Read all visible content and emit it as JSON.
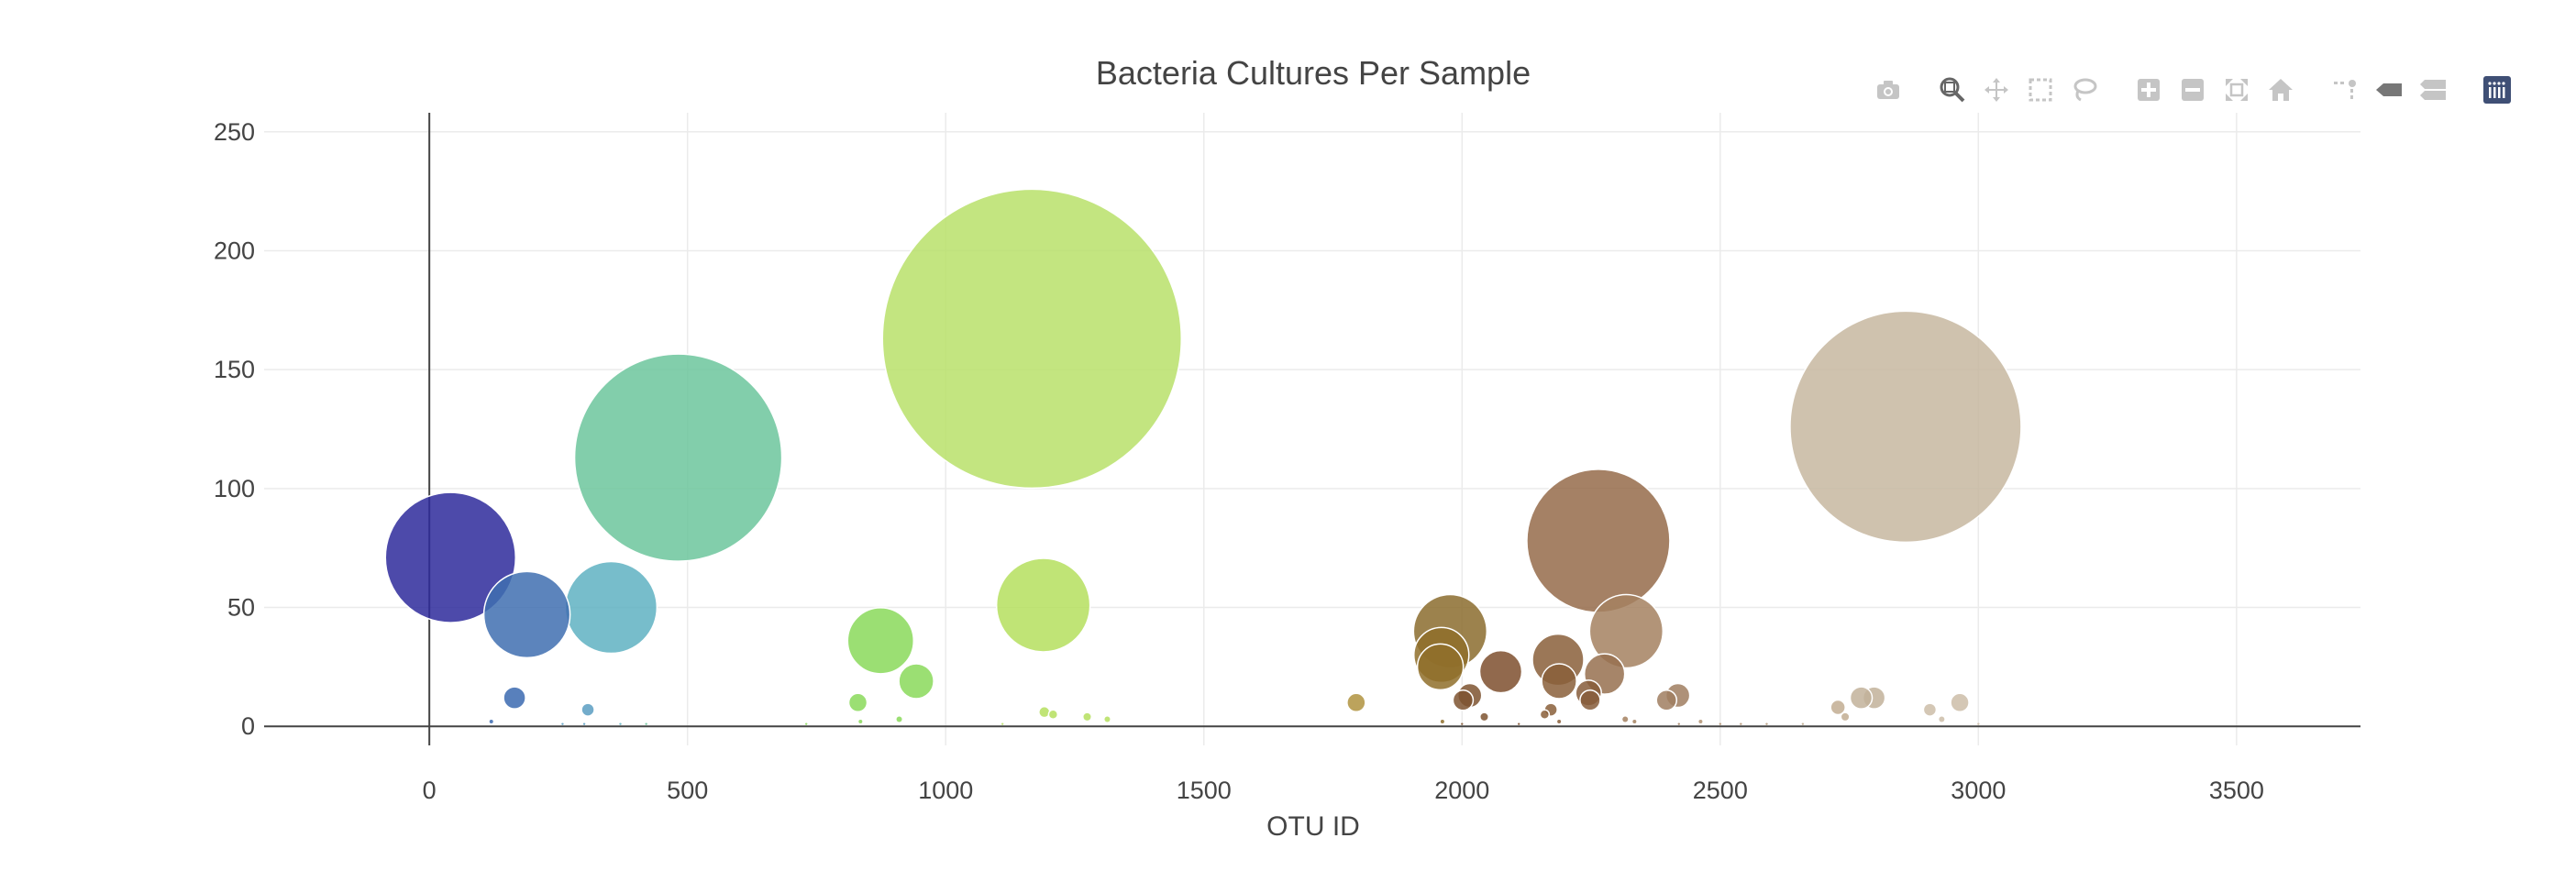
{
  "chart_data": {
    "type": "scatter",
    "mode": "bubble",
    "title": "Bacteria Cultures Per Sample",
    "xlabel": "OTU ID",
    "ylabel": "",
    "xlim": [
      -320,
      3740
    ],
    "ylim": [
      -8,
      258
    ],
    "x_ticks": [
      0,
      500,
      1000,
      1500,
      2000,
      2500,
      3000,
      3500
    ],
    "y_ticks": [
      0,
      50,
      100,
      150,
      200,
      250
    ],
    "grid": true,
    "colorscale": "Earth",
    "points": [
      {
        "x": 41,
        "y": 71,
        "color": "#2e2a9b"
      },
      {
        "x": 189,
        "y": 47,
        "color": "#3f6eb0"
      },
      {
        "x": 352,
        "y": 50,
        "color": "#5fb2c2"
      },
      {
        "x": 482,
        "y": 113,
        "color": "#6cc59c"
      },
      {
        "x": 1167,
        "y": 163,
        "color": "#b9e06a"
      },
      {
        "x": 2859,
        "y": 126,
        "color": "#c7b7a0"
      },
      {
        "x": 2264,
        "y": 78,
        "color": "#956b4a"
      },
      {
        "x": 1189,
        "y": 51,
        "color": "#b5df5e"
      },
      {
        "x": 1977,
        "y": 40,
        "color": "#8b6c2e"
      },
      {
        "x": 2318,
        "y": 40,
        "color": "#a58160"
      },
      {
        "x": 874,
        "y": 36,
        "color": "#8ad95a"
      },
      {
        "x": 1960,
        "y": 30,
        "color": "#8f6e2a"
      },
      {
        "x": 1958,
        "y": 25,
        "color": "#8f6e2a"
      },
      {
        "x": 2186,
        "y": 28,
        "color": "#8a5f3a"
      },
      {
        "x": 2075,
        "y": 23,
        "color": "#7e4f2e"
      },
      {
        "x": 2188,
        "y": 19,
        "color": "#8a5f3a"
      },
      {
        "x": 2276,
        "y": 22,
        "color": "#96704f"
      },
      {
        "x": 943,
        "y": 19,
        "color": "#8ad95a"
      },
      {
        "x": 2245,
        "y": 14,
        "color": "#865c3a"
      },
      {
        "x": 2248,
        "y": 11,
        "color": "#865c3a"
      },
      {
        "x": 2418,
        "y": 13,
        "color": "#a07e60"
      },
      {
        "x": 2798,
        "y": 12,
        "color": "#c2b29a"
      },
      {
        "x": 2773,
        "y": 12,
        "color": "#c2b29a"
      },
      {
        "x": 2396,
        "y": 11,
        "color": "#a07e60"
      },
      {
        "x": 2015,
        "y": 13,
        "color": "#7e5430"
      },
      {
        "x": 165,
        "y": 12,
        "color": "#3b6ab0"
      },
      {
        "x": 2002,
        "y": 11,
        "color": "#7e5430"
      },
      {
        "x": 1795,
        "y": 10,
        "color": "#b0933f"
      },
      {
        "x": 2964,
        "y": 10,
        "color": "#ccbda8"
      },
      {
        "x": 830,
        "y": 10,
        "color": "#8ad95a"
      },
      {
        "x": 2728,
        "y": 8,
        "color": "#c2ad92"
      },
      {
        "x": 2172,
        "y": 7,
        "color": "#8a5f3a"
      },
      {
        "x": 2906,
        "y": 7,
        "color": "#ccbda8"
      },
      {
        "x": 307,
        "y": 7,
        "color": "#5a9ec2"
      },
      {
        "x": 1191,
        "y": 6,
        "color": "#b5df5e"
      },
      {
        "x": 1208,
        "y": 5,
        "color": "#b5df5e"
      },
      {
        "x": 2160,
        "y": 5,
        "color": "#8a5f3a"
      },
      {
        "x": 2043,
        "y": 4,
        "color": "#7e5430"
      },
      {
        "x": 2742,
        "y": 4,
        "color": "#c2ad92"
      },
      {
        "x": 1274,
        "y": 4,
        "color": "#b5df5e"
      },
      {
        "x": 1313,
        "y": 3,
        "color": "#b5df5e"
      },
      {
        "x": 910,
        "y": 3,
        "color": "#8ad95a"
      },
      {
        "x": 2929,
        "y": 3,
        "color": "#ccbda8"
      },
      {
        "x": 2316,
        "y": 3,
        "color": "#a58160"
      },
      {
        "x": 2334,
        "y": 2,
        "color": "#a58160"
      },
      {
        "x": 120,
        "y": 2,
        "color": "#3b6ab0"
      },
      {
        "x": 835,
        "y": 2,
        "color": "#8ad95a"
      },
      {
        "x": 1962,
        "y": 2,
        "color": "#8f6e2a"
      },
      {
        "x": 2188,
        "y": 2,
        "color": "#8a5f3a"
      },
      {
        "x": 2462,
        "y": 2,
        "color": "#b09070"
      },
      {
        "x": 2000,
        "y": 1,
        "color": "#7e5430"
      },
      {
        "x": 2500,
        "y": 1,
        "color": "#b09070"
      },
      {
        "x": 2540,
        "y": 1,
        "color": "#b09070"
      },
      {
        "x": 2590,
        "y": 1,
        "color": "#b49878"
      },
      {
        "x": 258,
        "y": 1,
        "color": "#5a9ec2"
      },
      {
        "x": 300,
        "y": 1,
        "color": "#5a9ec2"
      },
      {
        "x": 370,
        "y": 1,
        "color": "#5fb2c2"
      },
      {
        "x": 420,
        "y": 1,
        "color": "#6cc59c"
      },
      {
        "x": 730,
        "y": 1,
        "color": "#8ad95a"
      },
      {
        "x": 1110,
        "y": 1,
        "color": "#b9e06a"
      },
      {
        "x": 2110,
        "y": 1,
        "color": "#7e4f2e"
      },
      {
        "x": 2660,
        "y": 1,
        "color": "#bca88c"
      },
      {
        "x": 3000,
        "y": 1,
        "color": "#ccbda8"
      },
      {
        "x": 2420,
        "y": 1,
        "color": "#a07e60"
      }
    ]
  },
  "modebar": {
    "buttons": [
      {
        "icon": "camera-icon",
        "group": 0
      },
      {
        "icon": "zoom-icon",
        "group": 1,
        "active": true
      },
      {
        "icon": "pan-icon",
        "group": 1
      },
      {
        "icon": "box-select-icon",
        "group": 1
      },
      {
        "icon": "lasso-icon",
        "group": 1
      },
      {
        "icon": "zoom-in-icon",
        "group": 2
      },
      {
        "icon": "zoom-out-icon",
        "group": 2
      },
      {
        "icon": "autoscale-icon",
        "group": 2
      },
      {
        "icon": "reset-axes-icon",
        "group": 2
      },
      {
        "icon": "spike-lines-icon",
        "group": 3
      },
      {
        "icon": "hover-closest-icon",
        "group": 3
      },
      {
        "icon": "hover-compare-icon",
        "group": 3
      },
      {
        "icon": "plotly-logo-icon",
        "group": 4
      }
    ]
  }
}
